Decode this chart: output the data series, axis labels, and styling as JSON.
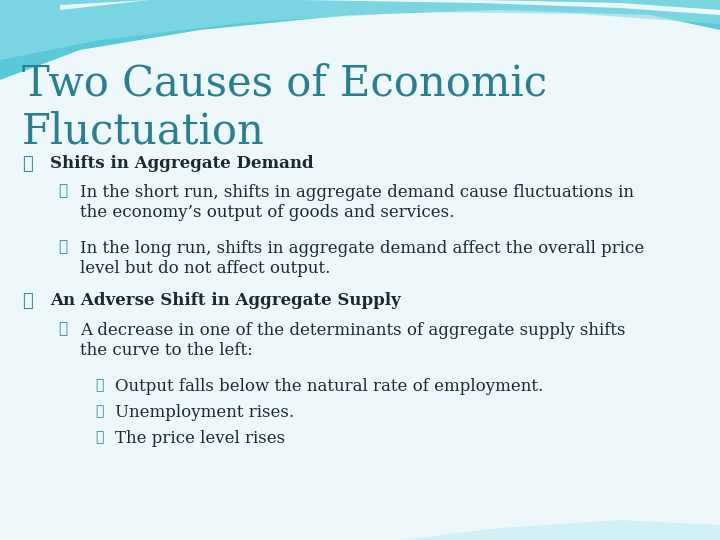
{
  "title_line1": "Two Causes of Economic",
  "title_line2": "Fluctuation",
  "title_color": "#2a7f8e",
  "bg_body_color": "#f0fafc",
  "bg_top_color": "#6ecee0",
  "bg_top2_color": "#9ddce8",
  "bg_white_streak": "#e8f8fc",
  "bullet_color": "#2a8a9a",
  "text_color": "#1a2a30",
  "bullet1_header": "Shifts in Aggregate Demand",
  "bullet1_sub1_line1": "In the short run, shifts in aggregate demand cause fluctuations in",
  "bullet1_sub1_line2": "the economy’s output of goods and services.",
  "bullet1_sub2_line1": "In the long run, shifts in aggregate demand affect the overall price",
  "bullet1_sub2_line2": "level but do not affect output.",
  "bullet2_header": "An Adverse Shift in Aggregate Supply",
  "bullet2_sub1_line1": "A decrease in one of the determinants of aggregate supply shifts",
  "bullet2_sub1_line2": "the curve to the left:",
  "bullet2_sub2_1": "Output falls below the natural rate of employment.",
  "bullet2_sub2_2": "Unemployment rises.",
  "bullet2_sub2_3": "The price level rises"
}
